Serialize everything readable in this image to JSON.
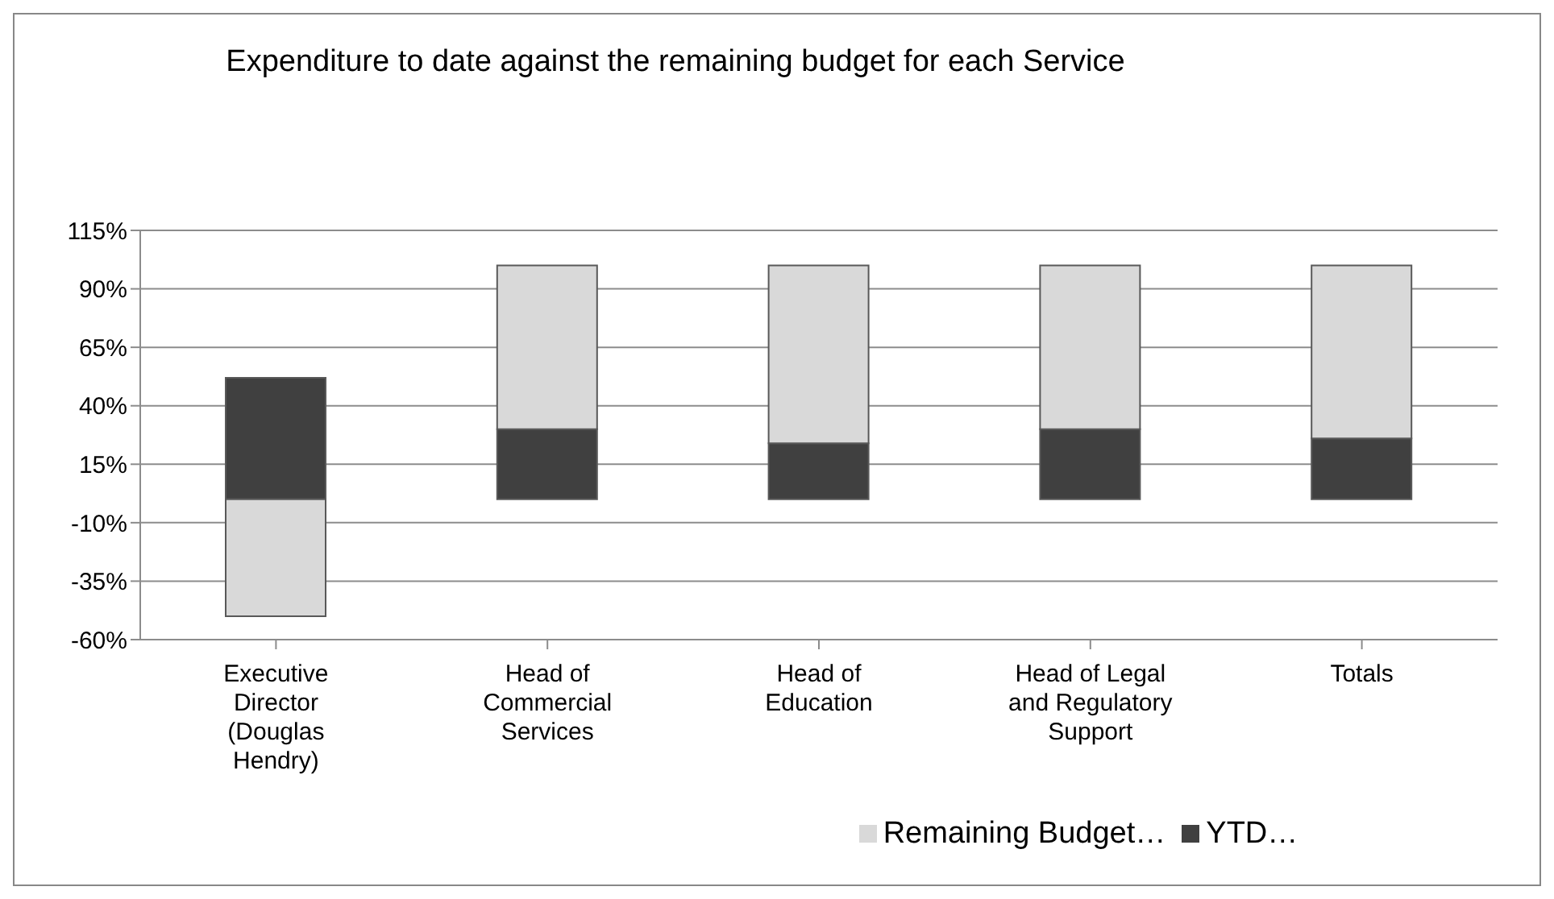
{
  "chart_data": {
    "type": "bar",
    "title": "Expenditure to date against the remaining budget for each Service",
    "stacked": true,
    "categories": [
      "Executive Director (Douglas Hendry)",
      "Head of Commercial Services",
      "Head of Education",
      "Head of Legal and Regulatory Support",
      "Totals"
    ],
    "series": [
      {
        "name": "YTD…",
        "color": "#404040",
        "values": [
          52,
          30,
          24,
          30,
          26
        ]
      },
      {
        "name": "Remaining Budget…",
        "color": "#d9d9d9",
        "values": [
          -50,
          70,
          76,
          70,
          74
        ]
      }
    ],
    "ylim": [
      -60,
      115
    ],
    "yticks": [
      {
        "value": -60,
        "label": "-60%"
      },
      {
        "value": -35,
        "label": "-35%"
      },
      {
        "value": -10,
        "label": "-10%"
      },
      {
        "value": 15,
        "label": "15%"
      },
      {
        "value": 40,
        "label": "40%"
      },
      {
        "value": 65,
        "label": "65%"
      },
      {
        "value": 90,
        "label": "90%"
      },
      {
        "value": 115,
        "label": "115%"
      }
    ],
    "grid": "y",
    "legend": "bottom"
  }
}
